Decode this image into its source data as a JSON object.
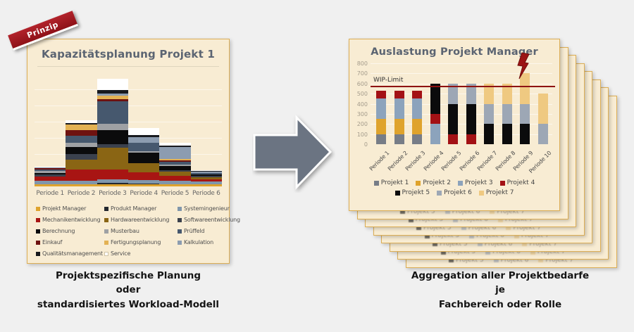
{
  "page": {
    "background": "#F0F0F0",
    "accent_red": "#8E1212",
    "panel_bg": "#F8ECD3",
    "panel_border": "#DCAE55"
  },
  "left_panel": {
    "badge": "Prinzip",
    "title": "Kapazitätsplanung Projekt 1",
    "caption_lines": [
      "Projektspezifische Planung",
      "oder",
      "standardisiertes Workload-Modell"
    ]
  },
  "right_panel": {
    "title": "Auslastung Projekt Manager",
    "wip_label": "WIP-Limit",
    "stacked_pages_behind": 7,
    "caption_lines": [
      "Aggregation aller Projektbedarfe",
      "je",
      "Fachbereich oder Rolle"
    ]
  },
  "icons": {
    "arrow": "arrow-right-icon",
    "overload": "lightning-bolt-icon"
  },
  "chart_data": [
    {
      "id": "left",
      "type": "bar",
      "stacked": true,
      "title": "Kapazitätsplanung Projekt 1",
      "categories": [
        "Periode 1",
        "Periode 2",
        "Periode 3",
        "Periode 4",
        "Periode 5",
        "Periode 6"
      ],
      "ylabel": "",
      "xlabel": "",
      "axis_labels_visible": false,
      "ymax_units": 160,
      "grid": true,
      "legend_position": "bottom",
      "series": [
        {
          "name": "Projekt Manager",
          "color": "#DFA32C",
          "values": [
            3,
            3,
            3,
            3,
            3,
            3
          ]
        },
        {
          "name": "Produkt Manager",
          "color": "#23272F",
          "values": [
            0,
            0,
            2,
            1,
            0,
            0
          ]
        },
        {
          "name": "Systemingenieur",
          "color": "#8096AB",
          "values": [
            5,
            5,
            5,
            5,
            5,
            4
          ]
        },
        {
          "name": "Mechanikentwicklung",
          "color": "#A81513",
          "values": [
            6,
            16,
            14,
            11,
            7,
            3
          ]
        },
        {
          "name": "Hardwareentwicklung",
          "color": "#8A6514",
          "values": [
            0,
            14,
            30,
            13,
            6,
            3
          ]
        },
        {
          "name": "Softwareentwicklung",
          "color": "#3B414D",
          "values": [
            3,
            7,
            5,
            0,
            2,
            2
          ]
        },
        {
          "name": "Berechnung",
          "color": "#0B0B0C",
          "values": [
            2,
            10,
            20,
            14,
            6,
            2
          ]
        },
        {
          "name": "Musterbau",
          "color": "#9FA1A4",
          "values": [
            3,
            6,
            9,
            2,
            2,
            0
          ]
        },
        {
          "name": "Prüffeld",
          "color": "#46586E",
          "values": [
            2,
            10,
            32,
            12,
            4,
            2
          ]
        },
        {
          "name": "Einkauf",
          "color": "#6E1210",
          "values": [
            2,
            8,
            3,
            0,
            2,
            0
          ]
        },
        {
          "name": "Fertigungsplanung",
          "color": "#E3B254",
          "values": [
            0,
            8,
            4,
            0,
            2,
            0
          ]
        },
        {
          "name": "Kalkulation",
          "color": "#8C9CB0",
          "values": [
            1,
            0,
            3,
            8,
            16,
            2
          ]
        },
        {
          "name": "Qualitätsmanagement",
          "color": "#17191E",
          "values": [
            0,
            2,
            5,
            3,
            2,
            1
          ]
        },
        {
          "name": "Service",
          "color": "#FFFFFF",
          "values": [
            1,
            4,
            16,
            10,
            4,
            1
          ]
        }
      ]
    },
    {
      "id": "right",
      "type": "bar",
      "stacked": true,
      "title": "Auslastung Projekt Manager",
      "categories": [
        "Periode 1",
        "Periode 2",
        "Periode 3",
        "Periode 4",
        "Periode 5",
        "Periode 6",
        "Periode 7",
        "Periode 8",
        "Periode 9",
        "Periode 10"
      ],
      "ylim": [
        0,
        800
      ],
      "ytick_step": 100,
      "yticks": [
        "0",
        "100",
        "200",
        "300",
        "400",
        "500",
        "600",
        "700",
        "800"
      ],
      "grid": true,
      "wip_limit_value": 575,
      "annotation": "lightning bolt above Periode 9 bar (overload)",
      "legend_position": "bottom",
      "totals": [
        530,
        530,
        530,
        600,
        600,
        600,
        600,
        600,
        700,
        500
      ],
      "series": [
        {
          "name": "Projekt 1",
          "color": "#777D87",
          "values": [
            100,
            100,
            100,
            0,
            0,
            0,
            0,
            0,
            0,
            0
          ]
        },
        {
          "name": "Projekt 2",
          "color": "#DFA32C",
          "values": [
            150,
            150,
            150,
            0,
            0,
            0,
            0,
            0,
            0,
            0
          ]
        },
        {
          "name": "Projekt 3",
          "color": "#8CA3BC",
          "values": [
            200,
            200,
            200,
            200,
            0,
            0,
            0,
            0,
            0,
            0
          ]
        },
        {
          "name": "Projekt 4",
          "color": "#A31115",
          "values": [
            80,
            80,
            80,
            100,
            100,
            100,
            0,
            0,
            0,
            0
          ]
        },
        {
          "name": "Projekt 5",
          "color": "#0B0B0C",
          "values": [
            0,
            0,
            0,
            300,
            300,
            300,
            200,
            200,
            200,
            0
          ]
        },
        {
          "name": "Projekt 6",
          "color": "#9DA7B5",
          "values": [
            0,
            0,
            0,
            0,
            200,
            200,
            200,
            200,
            200,
            200
          ]
        },
        {
          "name": "Projekt 7",
          "color": "#EFC981",
          "values": [
            0,
            0,
            0,
            0,
            0,
            0,
            200,
            200,
            300,
            300
          ]
        }
      ]
    }
  ]
}
